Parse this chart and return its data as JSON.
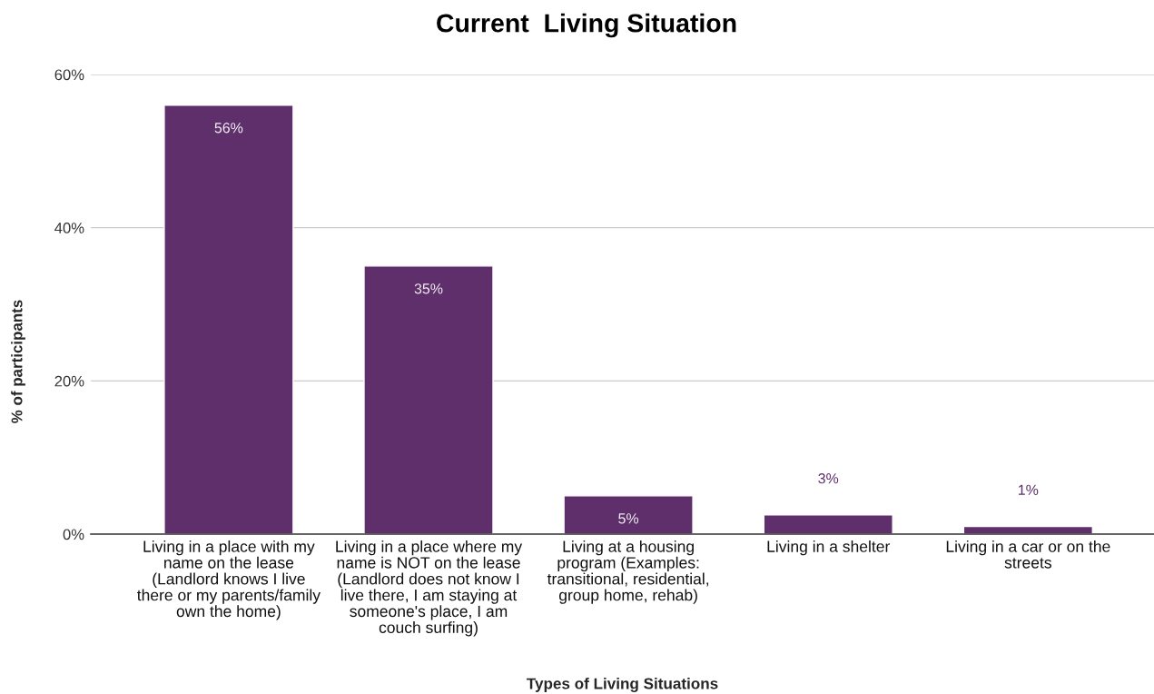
{
  "chart_data": {
    "type": "bar",
    "title": "Current  Living Situation",
    "xlabel": "Types of Living Situations",
    "ylabel": "% of participants",
    "categories": [
      "Living in a place with my name on the lease (Landlord knows I live there or my parents/family own the home)",
      "Living in a place where my name is NOT on the lease (Landlord does not know I live there, I am staying at someone's place, I am couch surfing)",
      "Living at a housing program (Examples: transitional, residential, group home, rehab)",
      "Living in a shelter",
      "Living in a car or on the streets"
    ],
    "values": [
      56,
      35,
      5,
      2.5,
      1
    ],
    "value_labels": [
      "56%",
      "35%",
      "5%",
      "3%",
      "1%"
    ],
    "color": "#5e2f6b",
    "ylim": [
      0,
      60
    ],
    "yticks": [
      {
        "value": 0,
        "label": "0%"
      },
      {
        "value": 20,
        "label": "20%"
      },
      {
        "value": 40,
        "label": "40%"
      },
      {
        "value": 60,
        "label": "60%"
      }
    ],
    "grid": "y"
  }
}
